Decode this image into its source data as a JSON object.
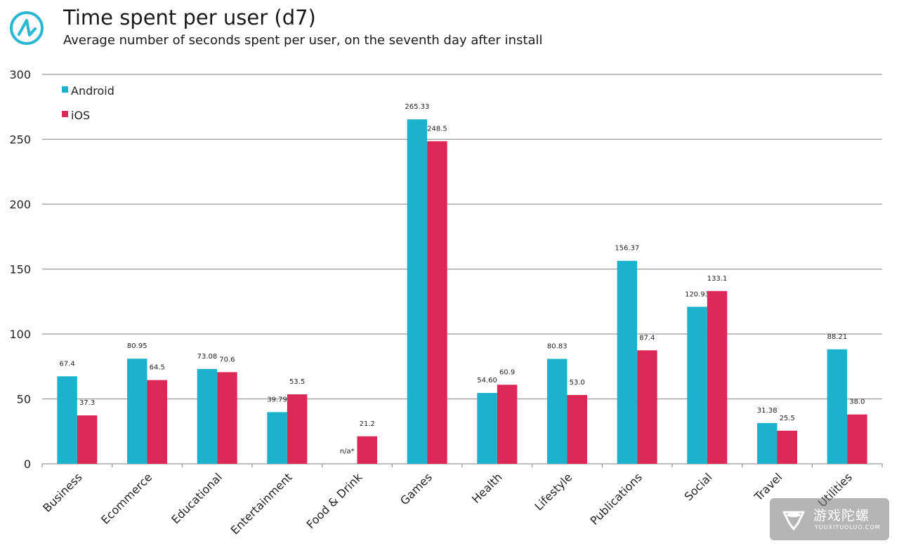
{
  "header": {
    "title": "Time spent per user (d7)",
    "subtitle": "Average number of seconds spent per user, on the seventh day after install",
    "logo_icon": "brand-logo-icon"
  },
  "watermark": {
    "text": "游戏陀螺",
    "subtext": "YOUXITUOLUO.COM",
    "icon": "gyroscope-logo-icon"
  },
  "colors": {
    "android": "#1ab2cc",
    "ios": "#dc2856",
    "grid": "#9a9a9a",
    "logo": "#2bb6d3"
  },
  "chart_data": {
    "type": "bar",
    "title": "Time spent per user (d7)",
    "subtitle": "Average number of seconds spent per user, on the seventh day after install",
    "xlabel": "",
    "ylabel": "",
    "ylim": [
      0,
      300
    ],
    "yticks": [
      0,
      50,
      100,
      150,
      200,
      250,
      300
    ],
    "grid": true,
    "legend_position": "top-left",
    "categories": [
      "Business",
      "Ecommerce",
      "Educational",
      "Entertainment",
      "Food & Drink",
      "Games",
      "Health",
      "Lifestyle",
      "Publications",
      "Social",
      "Travel",
      "Utilities"
    ],
    "series": [
      {
        "name": "Android",
        "color": "#1ab2cc",
        "values": [
          67.4,
          80.95,
          73.08,
          39.79,
          null,
          265.33,
          54.6,
          80.83,
          156.37,
          120.93,
          31.38,
          88.21
        ],
        "labels": [
          "67.4",
          "80.95",
          "73.08",
          "39.79",
          "n/a*",
          "265.33",
          "54.60",
          "80.83",
          "156.37",
          "120.93",
          "31.38",
          "88.21"
        ]
      },
      {
        "name": "iOS",
        "color": "#dc2856",
        "values": [
          37.3,
          64.5,
          70.6,
          53.5,
          21.2,
          248.5,
          60.9,
          53.0,
          87.4,
          133.1,
          25.5,
          38.0
        ],
        "labels": [
          "37.3",
          "64.5",
          "70.6",
          "53.5",
          "21.2",
          "248.5",
          "60.9",
          "53.0",
          "87.4",
          "133.1",
          "25.5",
          "38.0"
        ]
      }
    ]
  }
}
